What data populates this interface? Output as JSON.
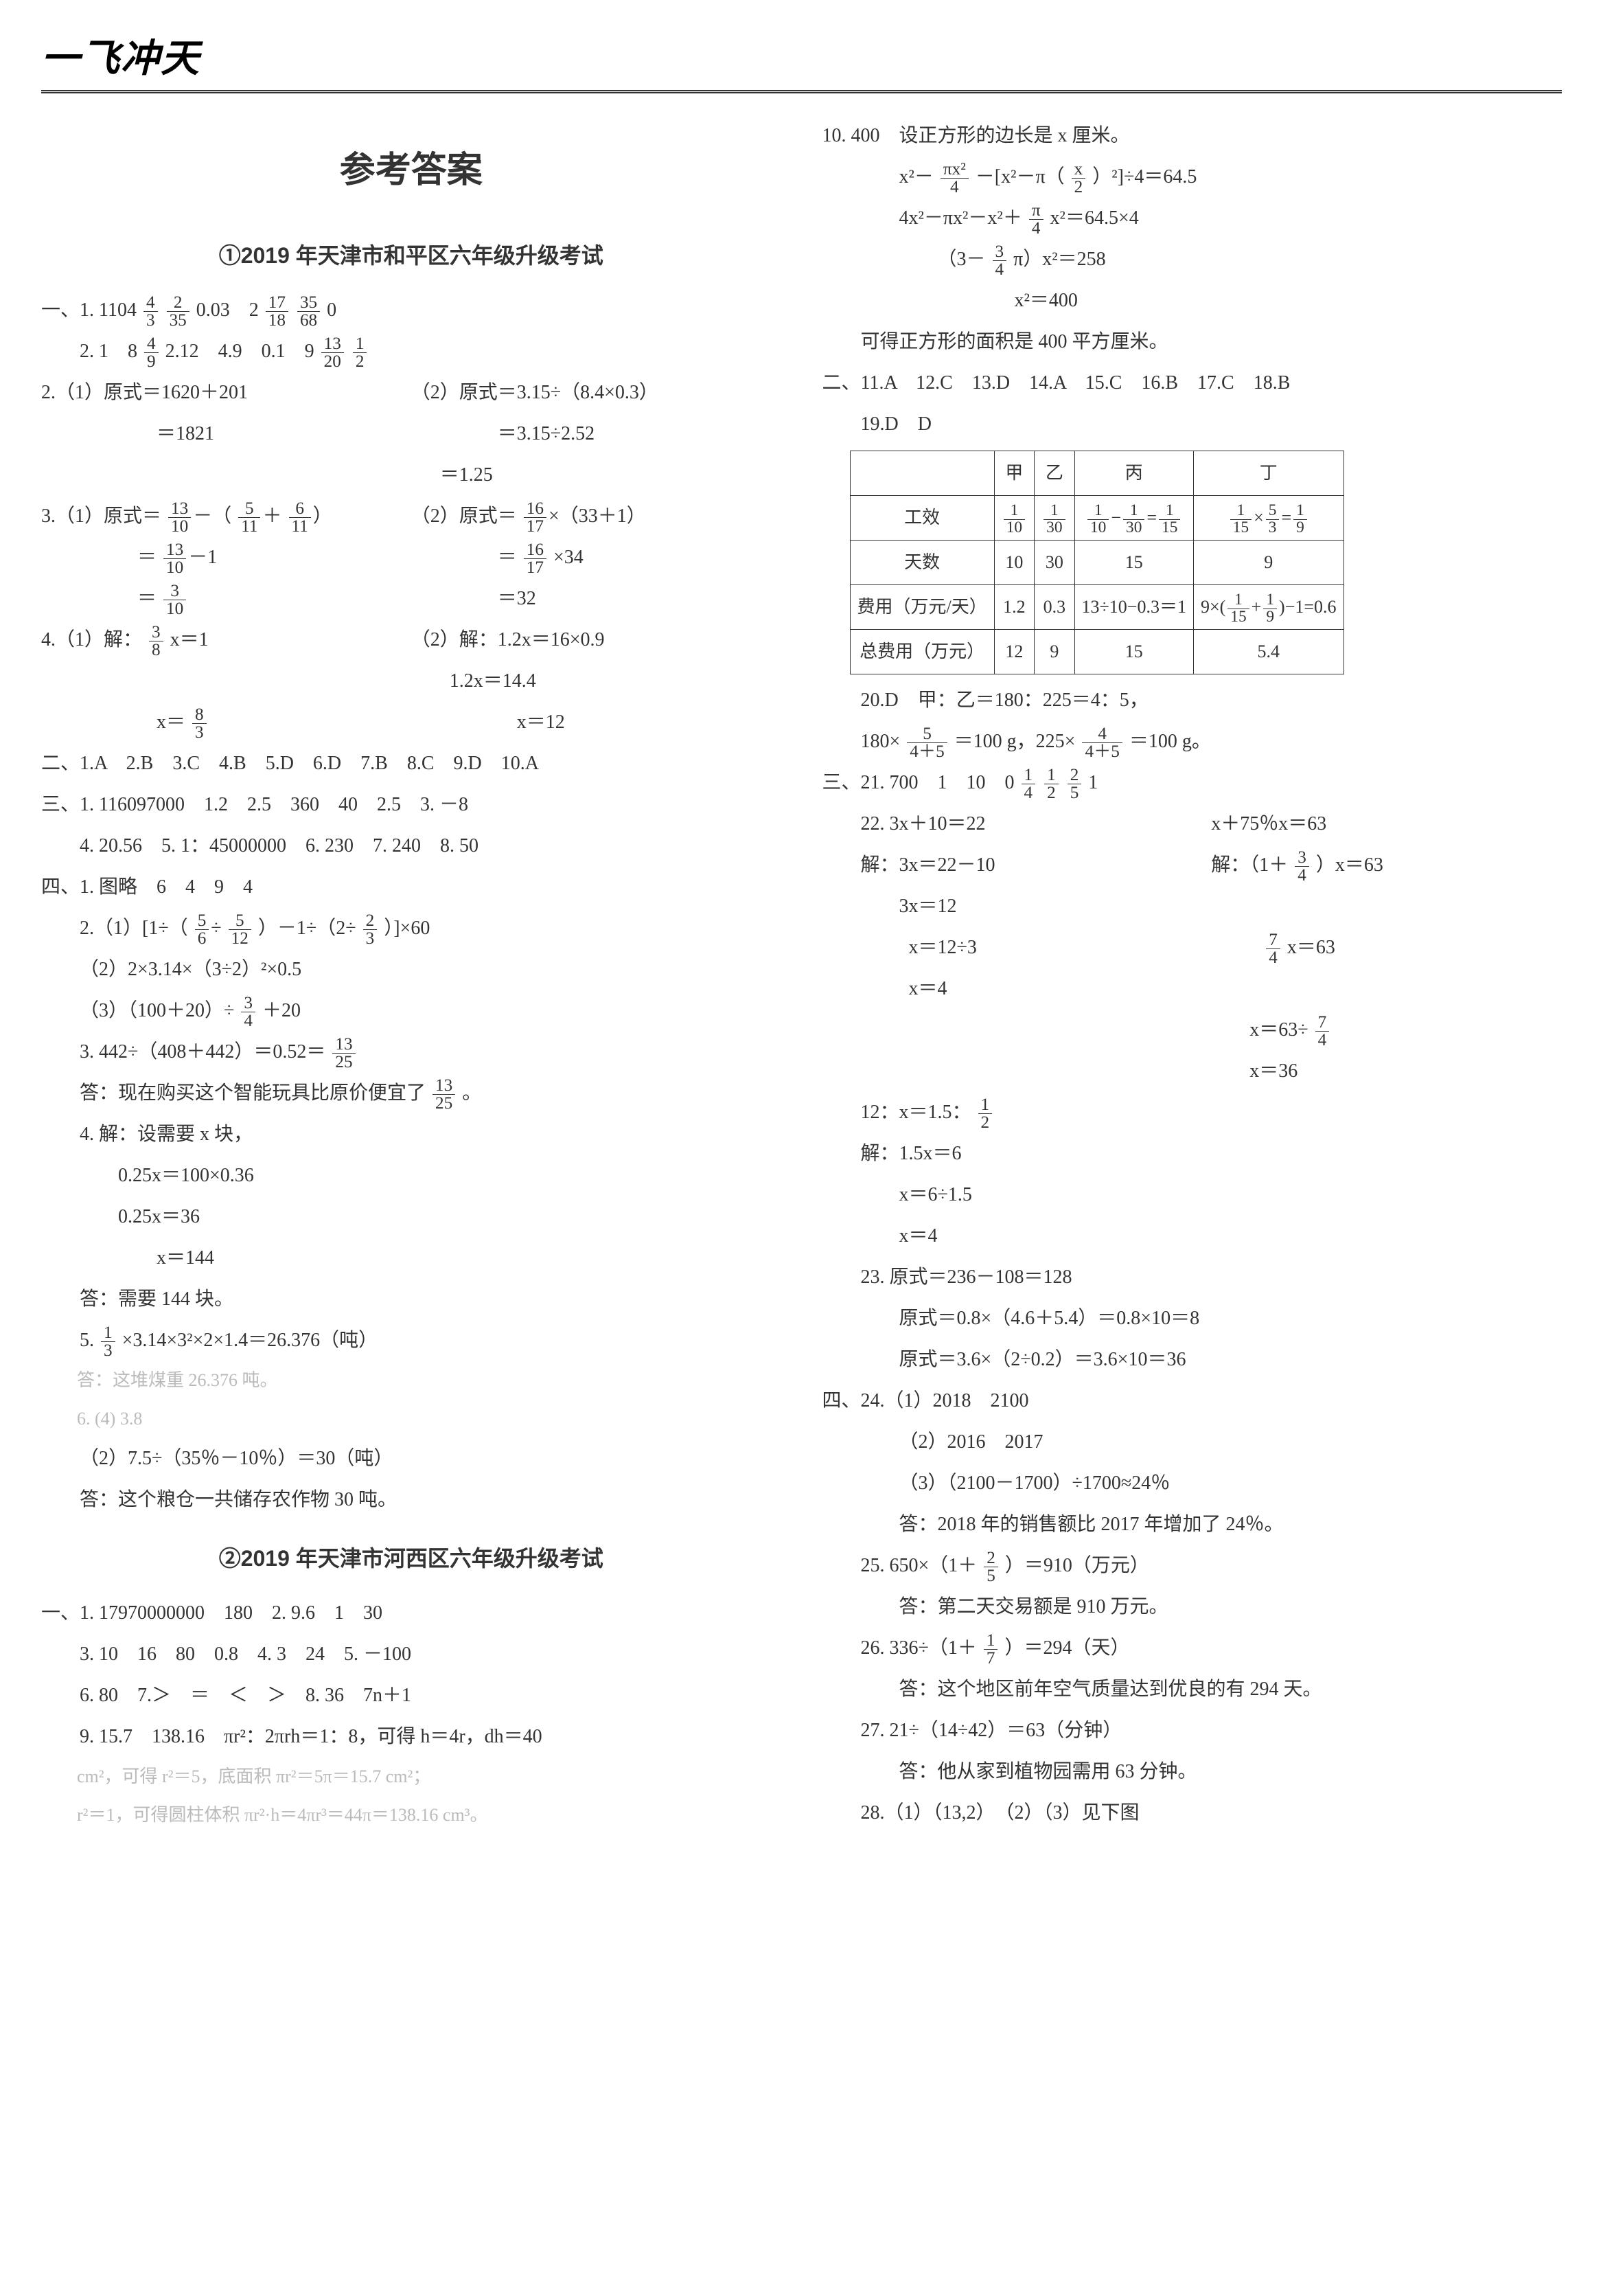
{
  "header": {
    "logo": "一飞冲天"
  },
  "title": "参考答案",
  "left": {
    "sec1_title": "①2019 年天津市和平区六年级升级考试",
    "l1": "一、1. 1104",
    "l1b": "0.03　2",
    "l1c": "0",
    "l2a": "2. 1　8",
    "l2b": "2.12　4.9　0.1　9",
    "l3": "2.（1）原式＝1620＋201",
    "l3r": "（2）原式＝3.15÷（8.4×0.3）",
    "l4": "＝1821",
    "l4r": "＝3.15÷2.52",
    "l5r": "＝1.25",
    "l6": "3.（1）原式＝",
    "l7r": "（2）原式＝",
    "l8r": "×34",
    "l9r": "＝32",
    "l10": "4.（1）解：",
    "l10b": "x＝1",
    "l10r": "（2）解：1.2x＝16×0.9",
    "l11r": "1.2x＝14.4",
    "l12": "x＝",
    "l12r": "x＝12",
    "l13": "二、1.A　2.B　3.C　4.B　5.D　6.D　7.B　8.C　9.D　10.A",
    "l14": "三、1. 116097000　1.2　2.5　360　40　2.5　3. －8",
    "l15": "4. 20.56　5. 1：45000000　6. 230　7. 240　8. 50",
    "l16": "四、1. 图略　6　4　9　4",
    "l17": "2.（1）[1÷（",
    "l17b": "）－1÷（2÷",
    "l17c": "）]×60",
    "l18": "（2）2×3.14×（3÷2）²×0.5",
    "l19": "（3）（100＋20）÷",
    "l19b": "＋20",
    "l20": "3. 442÷（408＋442）＝0.52＝",
    "l21": "答：现在购买这个智能玩具比原价便宜了",
    "l21b": "。",
    "l22": "4. 解：设需要 x 块，",
    "l23": "0.25x＝100×0.36",
    "l24": "0.25x＝36",
    "l25": "x＝144",
    "l26": "答：需要 144 块。",
    "l27": "5.",
    "l27b": "×3.14×3²×2×1.4＝26.376（吨）",
    "l28": "答：这堆煤重 26.376 吨。",
    "l29": "6. (4) 3.8",
    "l30": "（2）7.5÷（35％－10％）＝30（吨）",
    "l31": "答：这个粮仓一共储存农作物 30 吨。",
    "sec2_title": "②2019 年天津市河西区六年级升级考试",
    "l32": "一、1. 17970000000　180　2. 9.6　1　30",
    "l33": "3. 10　16　80　0.8　4. 3　24　5. －100",
    "l34": "6. 80　7.＞　＝　＜　＞　8. 36　7n＋1",
    "l35": "9. 15.7　138.16　πr²：2πrh＝1：8，可得 h＝4r，dh＝40",
    "l36": "cm²，可得 r²＝5，底面积 πr²＝5π＝15.7 cm²；",
    "l37": "r²＝1，可得圆柱体积 πr²·h＝4πr³＝44π＝138.16 cm³。"
  },
  "right": {
    "r1": "10. 400　设正方形的边长是 x 厘米。",
    "r2a": "x²－",
    "r2b": "－[x²－π（",
    "r2c": "）²]÷4＝64.5",
    "r3a": "4x²－πx²－x²＋",
    "r3b": "x²＝64.5×4",
    "r4a": "（3－",
    "r4b": "π）x²＝258",
    "r5": "x²＝400",
    "r6": "可得正方形的面积是 400 平方厘米。",
    "r7": "二、11.A　12.C　13.D　14.A　15.C　16.B　17.C　18.B",
    "r8": "19.D　D",
    "table": {
      "cols": [
        "",
        "甲",
        "乙",
        "丙",
        "丁"
      ],
      "rows": [
        [
          "工效",
          "1/10",
          "1/30",
          "1/10 − 1/30 = 1/15",
          "1/15 × 5/3 = 1/9"
        ],
        [
          "天数",
          "10",
          "30",
          "15",
          "9"
        ],
        [
          "费用（万元/天）",
          "1.2",
          "0.3",
          "13÷10−0.3＝1",
          "9×(1/15+1/9)−1＝0.6"
        ],
        [
          "总费用（万元）",
          "12",
          "9",
          "15",
          "5.4"
        ]
      ]
    },
    "r9": "20.D　甲：乙＝180：225＝4：5，",
    "r10a": "180×",
    "r10b": "＝100 g，225×",
    "r10c": "＝100 g。",
    "r11": "三、21. 700　1　10　0",
    "r11b": "1",
    "r12": "22. 3x＋10＝22",
    "r12r": "x＋75％x＝63",
    "r13": "解：3x＝22－10",
    "r13r": "解：（1＋",
    "r13rb": "）x＝63",
    "r14": "3x＝12",
    "r15": "x＝12÷3",
    "r15r": "x＝63",
    "r16": "x＝4",
    "r17r": "x＝63÷",
    "r18r": "x＝36",
    "r19": "12：x＝1.5：",
    "r20": "解：1.5x＝6",
    "r21": "x＝6÷1.5",
    "r22": "x＝4",
    "r23": "23. 原式＝236－108＝128",
    "r24": "原式＝0.8×（4.6＋5.4）＝0.8×10＝8",
    "r25": "原式＝3.6×（2÷0.2）＝3.6×10＝36",
    "r26": "四、24.（1）2018　2100",
    "r27": "（2）2016　2017",
    "r28": "（3）（2100－1700）÷1700≈24％",
    "r29": "答：2018 年的销售额比 2017 年增加了 24％。",
    "r30a": "25. 650×（1＋",
    "r30b": "）＝910（万元）",
    "r31": "答：第二天交易额是 910 万元。",
    "r32a": "26. 336÷（1＋",
    "r32b": "）＝294（天）",
    "r33": "答：这个地区前年空气质量达到优良的有 294 天。",
    "r34": "27. 21÷（14÷42）＝63（分钟）",
    "r35": "答：他从家到植物园需用 63 分钟。",
    "r36": "28.（1）（13,2）　（2）（3）见下图"
  },
  "colors": {
    "text": "#333333",
    "bg": "#ffffff",
    "rule": "#333333"
  }
}
